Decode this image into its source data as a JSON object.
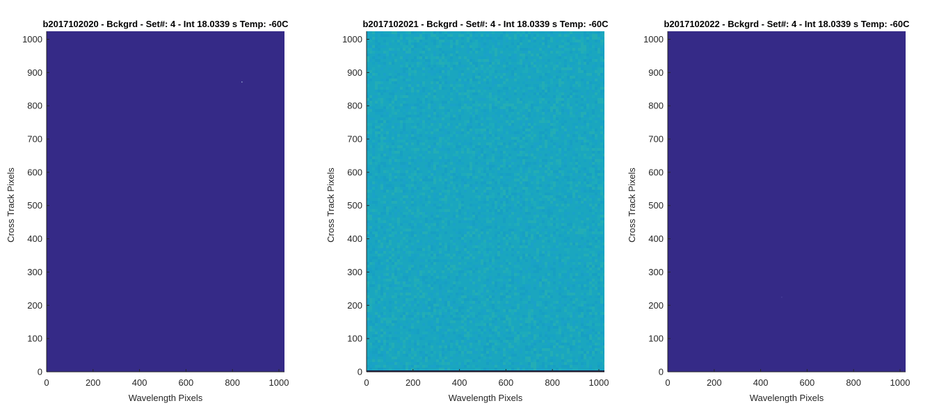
{
  "chart_data": [
    {
      "type": "heatmap",
      "title": "b2017102020 - Bckgrd - Set#: 4 - Int 18.0339 s Temp: -60C",
      "xlabel": "Wavelength Pixels",
      "ylabel": "Cross Track Pixels",
      "xlim": [
        0,
        1024
      ],
      "ylim": [
        0,
        1024
      ],
      "xticks": [
        "0",
        "200",
        "400",
        "600",
        "800",
        "1000"
      ],
      "yticks": [
        "0",
        "100",
        "200",
        "300",
        "400",
        "500",
        "600",
        "700",
        "800",
        "900",
        "1000"
      ],
      "fill_color": "#352a87",
      "noise_colors": [],
      "hot_pixels": [
        {
          "x": 840,
          "y": 872,
          "color": "#8fa0c8"
        }
      ],
      "bottom_line": false
    },
    {
      "type": "heatmap",
      "title": "b2017102021 - Bckgrd - Set#: 4 - Int 18.0339 s Temp: -60C",
      "xlabel": "Wavelength Pixels",
      "ylabel": "Cross Track Pixels",
      "xlim": [
        0,
        1024
      ],
      "ylim": [
        0,
        1024
      ],
      "xticks": [
        "0",
        "200",
        "400",
        "600",
        "800",
        "1000"
      ],
      "yticks": [
        "0",
        "100",
        "200",
        "300",
        "400",
        "500",
        "600",
        "700",
        "800",
        "900",
        "1000"
      ],
      "fill_color": "#1aa6bf",
      "noise_colors": [
        "#1599c6",
        "#20aeb8",
        "#16a0c9",
        "#2bb3ad",
        "#1b9ece"
      ],
      "hot_pixels": [],
      "bottom_line": true
    },
    {
      "type": "heatmap",
      "title": "b2017102022 - Bckgrd - Set#: 4 - Int 18.0339 s Temp: -60C",
      "xlabel": "Wavelength Pixels",
      "ylabel": "Cross Track Pixels",
      "xlim": [
        0,
        1024
      ],
      "ylim": [
        0,
        1024
      ],
      "xticks": [
        "0",
        "200",
        "400",
        "600",
        "800",
        "1000"
      ],
      "yticks": [
        "0",
        "100",
        "200",
        "300",
        "400",
        "500",
        "600",
        "700",
        "800",
        "900",
        "1000"
      ],
      "fill_color": "#352a87",
      "noise_colors": [],
      "hot_pixels": [
        {
          "x": 490,
          "y": 225,
          "color": "#4a3f99"
        }
      ],
      "bottom_line": false
    }
  ]
}
